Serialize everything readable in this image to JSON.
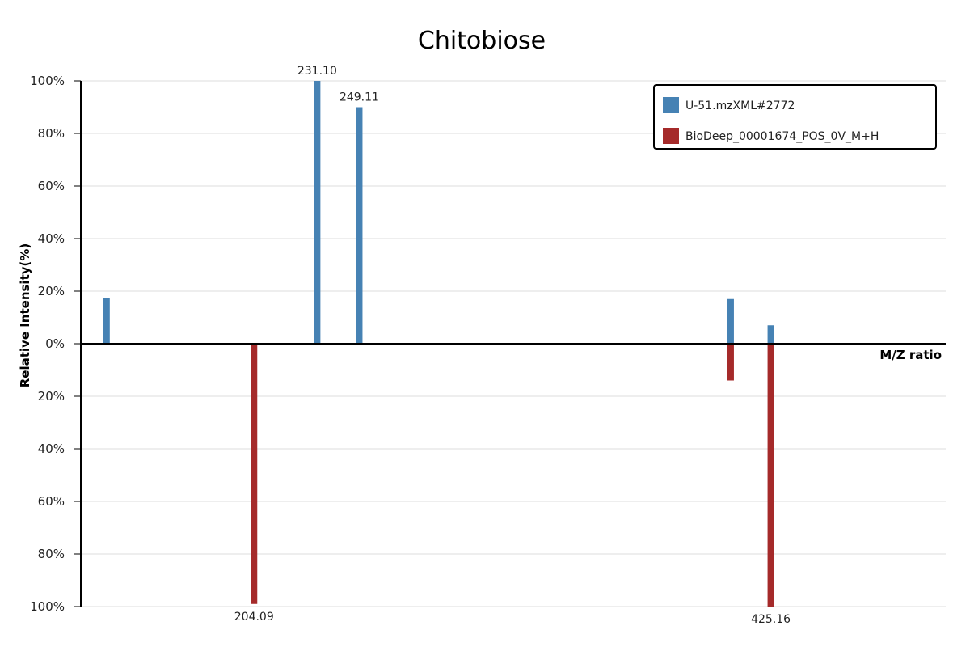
{
  "chart_data": {
    "type": "bar",
    "title": "Chitobiose",
    "xlabel": "M/Z ratio",
    "ylabel": "Relative Intensity(%)",
    "ylim": [
      -100,
      100
    ],
    "xlim": [
      130,
      500
    ],
    "grid": true,
    "legend_position": "top-right",
    "y_tick_labels": [
      "100%",
      "80%",
      "60%",
      "40%",
      "20%",
      "0%",
      "20%",
      "40%",
      "60%",
      "80%",
      "100%"
    ],
    "series": [
      {
        "name": "U-51.mzXML#2772",
        "color": "#4682b4",
        "direction": "up",
        "points": [
          {
            "x": 141.0,
            "y": 17.5,
            "label": ""
          },
          {
            "x": 231.1,
            "y": 100,
            "label": "231.10"
          },
          {
            "x": 249.11,
            "y": 90,
            "label": "249.11"
          },
          {
            "x": 408.0,
            "y": 17,
            "label": ""
          },
          {
            "x": 425.16,
            "y": 7,
            "label": ""
          }
        ]
      },
      {
        "name": "BioDeep_00001674_POS_0V_M+H",
        "color": "#a52a2a",
        "direction": "down",
        "points": [
          {
            "x": 204.09,
            "y": 99,
            "label": "204.09"
          },
          {
            "x": 408.0,
            "y": 14,
            "label": ""
          },
          {
            "x": 425.16,
            "y": 100,
            "label": "425.16"
          }
        ]
      }
    ]
  }
}
